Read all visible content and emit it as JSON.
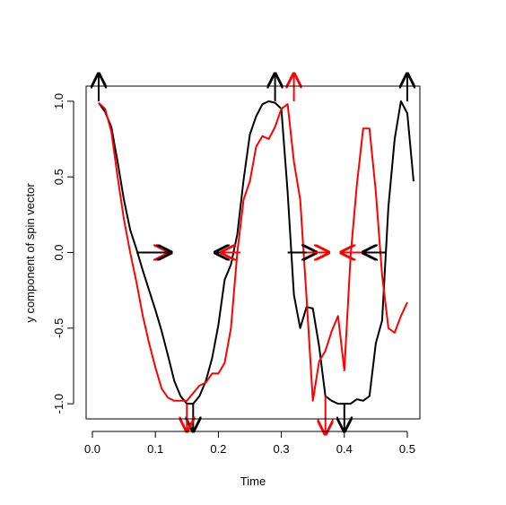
{
  "chart_data": {
    "type": "line",
    "title": "",
    "xlabel": "Time",
    "ylabel": "y component of spin vector",
    "xlim": [
      -0.01,
      0.52
    ],
    "ylim": [
      -1.1,
      1.1
    ],
    "x_ticks": [
      0.0,
      0.1,
      0.2,
      0.3,
      0.4,
      0.5
    ],
    "x_tick_labels": [
      "0.0",
      "0.1",
      "0.2",
      "0.3",
      "0.4",
      "0.5"
    ],
    "y_ticks": [
      -1.0,
      -0.5,
      0.0,
      0.5,
      1.0
    ],
    "y_tick_labels": [
      "-1.0",
      "-0.5",
      "0.0",
      "0.5",
      "1.0"
    ],
    "grid": false,
    "legend": "none",
    "series": [
      {
        "color": "#000000",
        "points": [
          [
            0.01,
            0.99
          ],
          [
            0.02,
            0.93
          ],
          [
            0.03,
            0.83
          ],
          [
            0.04,
            0.6
          ],
          [
            0.05,
            0.35
          ],
          [
            0.06,
            0.15
          ],
          [
            0.07,
            0.02
          ],
          [
            0.08,
            -0.12
          ],
          [
            0.09,
            -0.25
          ],
          [
            0.1,
            -0.38
          ],
          [
            0.11,
            -0.52
          ],
          [
            0.12,
            -0.68
          ],
          [
            0.13,
            -0.85
          ],
          [
            0.14,
            -0.95
          ],
          [
            0.15,
            -1.0
          ],
          [
            0.16,
            -1.0
          ],
          [
            0.17,
            -0.95
          ],
          [
            0.18,
            -0.85
          ],
          [
            0.19,
            -0.7
          ],
          [
            0.2,
            -0.48
          ],
          [
            0.21,
            -0.18
          ],
          [
            0.22,
            -0.08
          ],
          [
            0.23,
            0.12
          ],
          [
            0.24,
            0.48
          ],
          [
            0.25,
            0.78
          ],
          [
            0.26,
            0.9
          ],
          [
            0.27,
            0.98
          ],
          [
            0.28,
            1.0
          ],
          [
            0.29,
            0.99
          ],
          [
            0.3,
            0.95
          ],
          [
            0.31,
            0.4
          ],
          [
            0.32,
            -0.28
          ],
          [
            0.33,
            -0.5
          ],
          [
            0.34,
            -0.36
          ],
          [
            0.35,
            -0.37
          ],
          [
            0.36,
            -0.62
          ],
          [
            0.37,
            -0.95
          ],
          [
            0.38,
            -0.98
          ],
          [
            0.39,
            -1.0
          ],
          [
            0.4,
            -1.0
          ],
          [
            0.41,
            -1.0
          ],
          [
            0.42,
            -0.97
          ],
          [
            0.43,
            -0.98
          ],
          [
            0.44,
            -0.95
          ],
          [
            0.45,
            -0.6
          ],
          [
            0.46,
            -0.45
          ],
          [
            0.47,
            0.3
          ],
          [
            0.48,
            0.75
          ],
          [
            0.49,
            1.0
          ],
          [
            0.5,
            0.92
          ],
          [
            0.51,
            0.47
          ]
        ]
      },
      {
        "color": "#ff0000",
        "points": [
          [
            0.01,
            0.99
          ],
          [
            0.02,
            0.95
          ],
          [
            0.03,
            0.8
          ],
          [
            0.04,
            0.5
          ],
          [
            0.05,
            0.22
          ],
          [
            0.06,
            0.0
          ],
          [
            0.07,
            -0.2
          ],
          [
            0.08,
            -0.42
          ],
          [
            0.09,
            -0.6
          ],
          [
            0.1,
            -0.76
          ],
          [
            0.11,
            -0.9
          ],
          [
            0.12,
            -0.96
          ],
          [
            0.13,
            -0.98
          ],
          [
            0.14,
            -0.98
          ],
          [
            0.15,
            -0.98
          ],
          [
            0.16,
            -0.93
          ],
          [
            0.17,
            -0.88
          ],
          [
            0.18,
            -0.86
          ],
          [
            0.19,
            -0.8
          ],
          [
            0.2,
            -0.8
          ],
          [
            0.21,
            -0.73
          ],
          [
            0.22,
            -0.5
          ],
          [
            0.23,
            0.0
          ],
          [
            0.24,
            0.35
          ],
          [
            0.25,
            0.47
          ],
          [
            0.26,
            0.7
          ],
          [
            0.27,
            0.77
          ],
          [
            0.28,
            0.75
          ],
          [
            0.29,
            0.83
          ],
          [
            0.3,
            0.95
          ],
          [
            0.31,
            0.98
          ],
          [
            0.32,
            0.6
          ],
          [
            0.33,
            0.35
          ],
          [
            0.34,
            -0.3
          ],
          [
            0.35,
            -0.98
          ],
          [
            0.36,
            -0.72
          ],
          [
            0.37,
            -0.65
          ],
          [
            0.38,
            -0.52
          ],
          [
            0.39,
            -0.42
          ],
          [
            0.4,
            -0.78
          ],
          [
            0.41,
            -0.02
          ],
          [
            0.42,
            0.45
          ],
          [
            0.43,
            0.82
          ],
          [
            0.44,
            0.82
          ],
          [
            0.45,
            0.4
          ],
          [
            0.46,
            -0.15
          ],
          [
            0.47,
            -0.5
          ],
          [
            0.48,
            -0.53
          ],
          [
            0.49,
            -0.42
          ],
          [
            0.5,
            -0.33
          ]
        ]
      }
    ],
    "arrows": [
      {
        "color": "#000000",
        "x": 0.01,
        "y": 1.0,
        "dx": 0.0,
        "dy": 0.18
      },
      {
        "color": "#000000",
        "x": 0.29,
        "y": 1.0,
        "dx": 0.0,
        "dy": 0.18
      },
      {
        "color": "#000000",
        "x": 0.5,
        "y": 1.0,
        "dx": 0.0,
        "dy": 0.18
      },
      {
        "color": "#ff0000",
        "x": 0.32,
        "y": 1.0,
        "dx": 0.0,
        "dy": 0.18
      },
      {
        "color": "#000000",
        "x": 0.16,
        "y": -1.0,
        "dx": 0.0,
        "dy": -0.18
      },
      {
        "color": "#000000",
        "x": 0.4,
        "y": -1.0,
        "dx": 0.0,
        "dy": -0.18
      },
      {
        "color": "#ff0000",
        "x": 0.15,
        "y": -1.0,
        "dx": 0.0,
        "dy": -0.18
      },
      {
        "color": "#ff0000",
        "x": 0.37,
        "y": -0.95,
        "dx": 0.0,
        "dy": -0.25
      },
      {
        "color": "#ff0000",
        "x": 0.07,
        "y": 0.0,
        "dx": 0.05,
        "dy": 0.0
      },
      {
        "color": "#000000",
        "x": 0.07,
        "y": 0.0,
        "dx": 0.055,
        "dy": 0.0
      },
      {
        "color": "#000000",
        "x": 0.235,
        "y": 0.0,
        "dx": -0.04,
        "dy": 0.0
      },
      {
        "color": "#ff0000",
        "x": 0.235,
        "y": 0.0,
        "dx": -0.03,
        "dy": 0.0
      },
      {
        "color": "#000000",
        "x": 0.31,
        "y": 0.0,
        "dx": 0.045,
        "dy": 0.0
      },
      {
        "color": "#ff0000",
        "x": 0.34,
        "y": 0.0,
        "dx": 0.035,
        "dy": 0.0
      },
      {
        "color": "#ff0000",
        "x": 0.43,
        "y": 0.0,
        "dx": -0.035,
        "dy": 0.0
      },
      {
        "color": "#000000",
        "x": 0.465,
        "y": 0.0,
        "dx": -0.035,
        "dy": 0.0
      }
    ]
  }
}
